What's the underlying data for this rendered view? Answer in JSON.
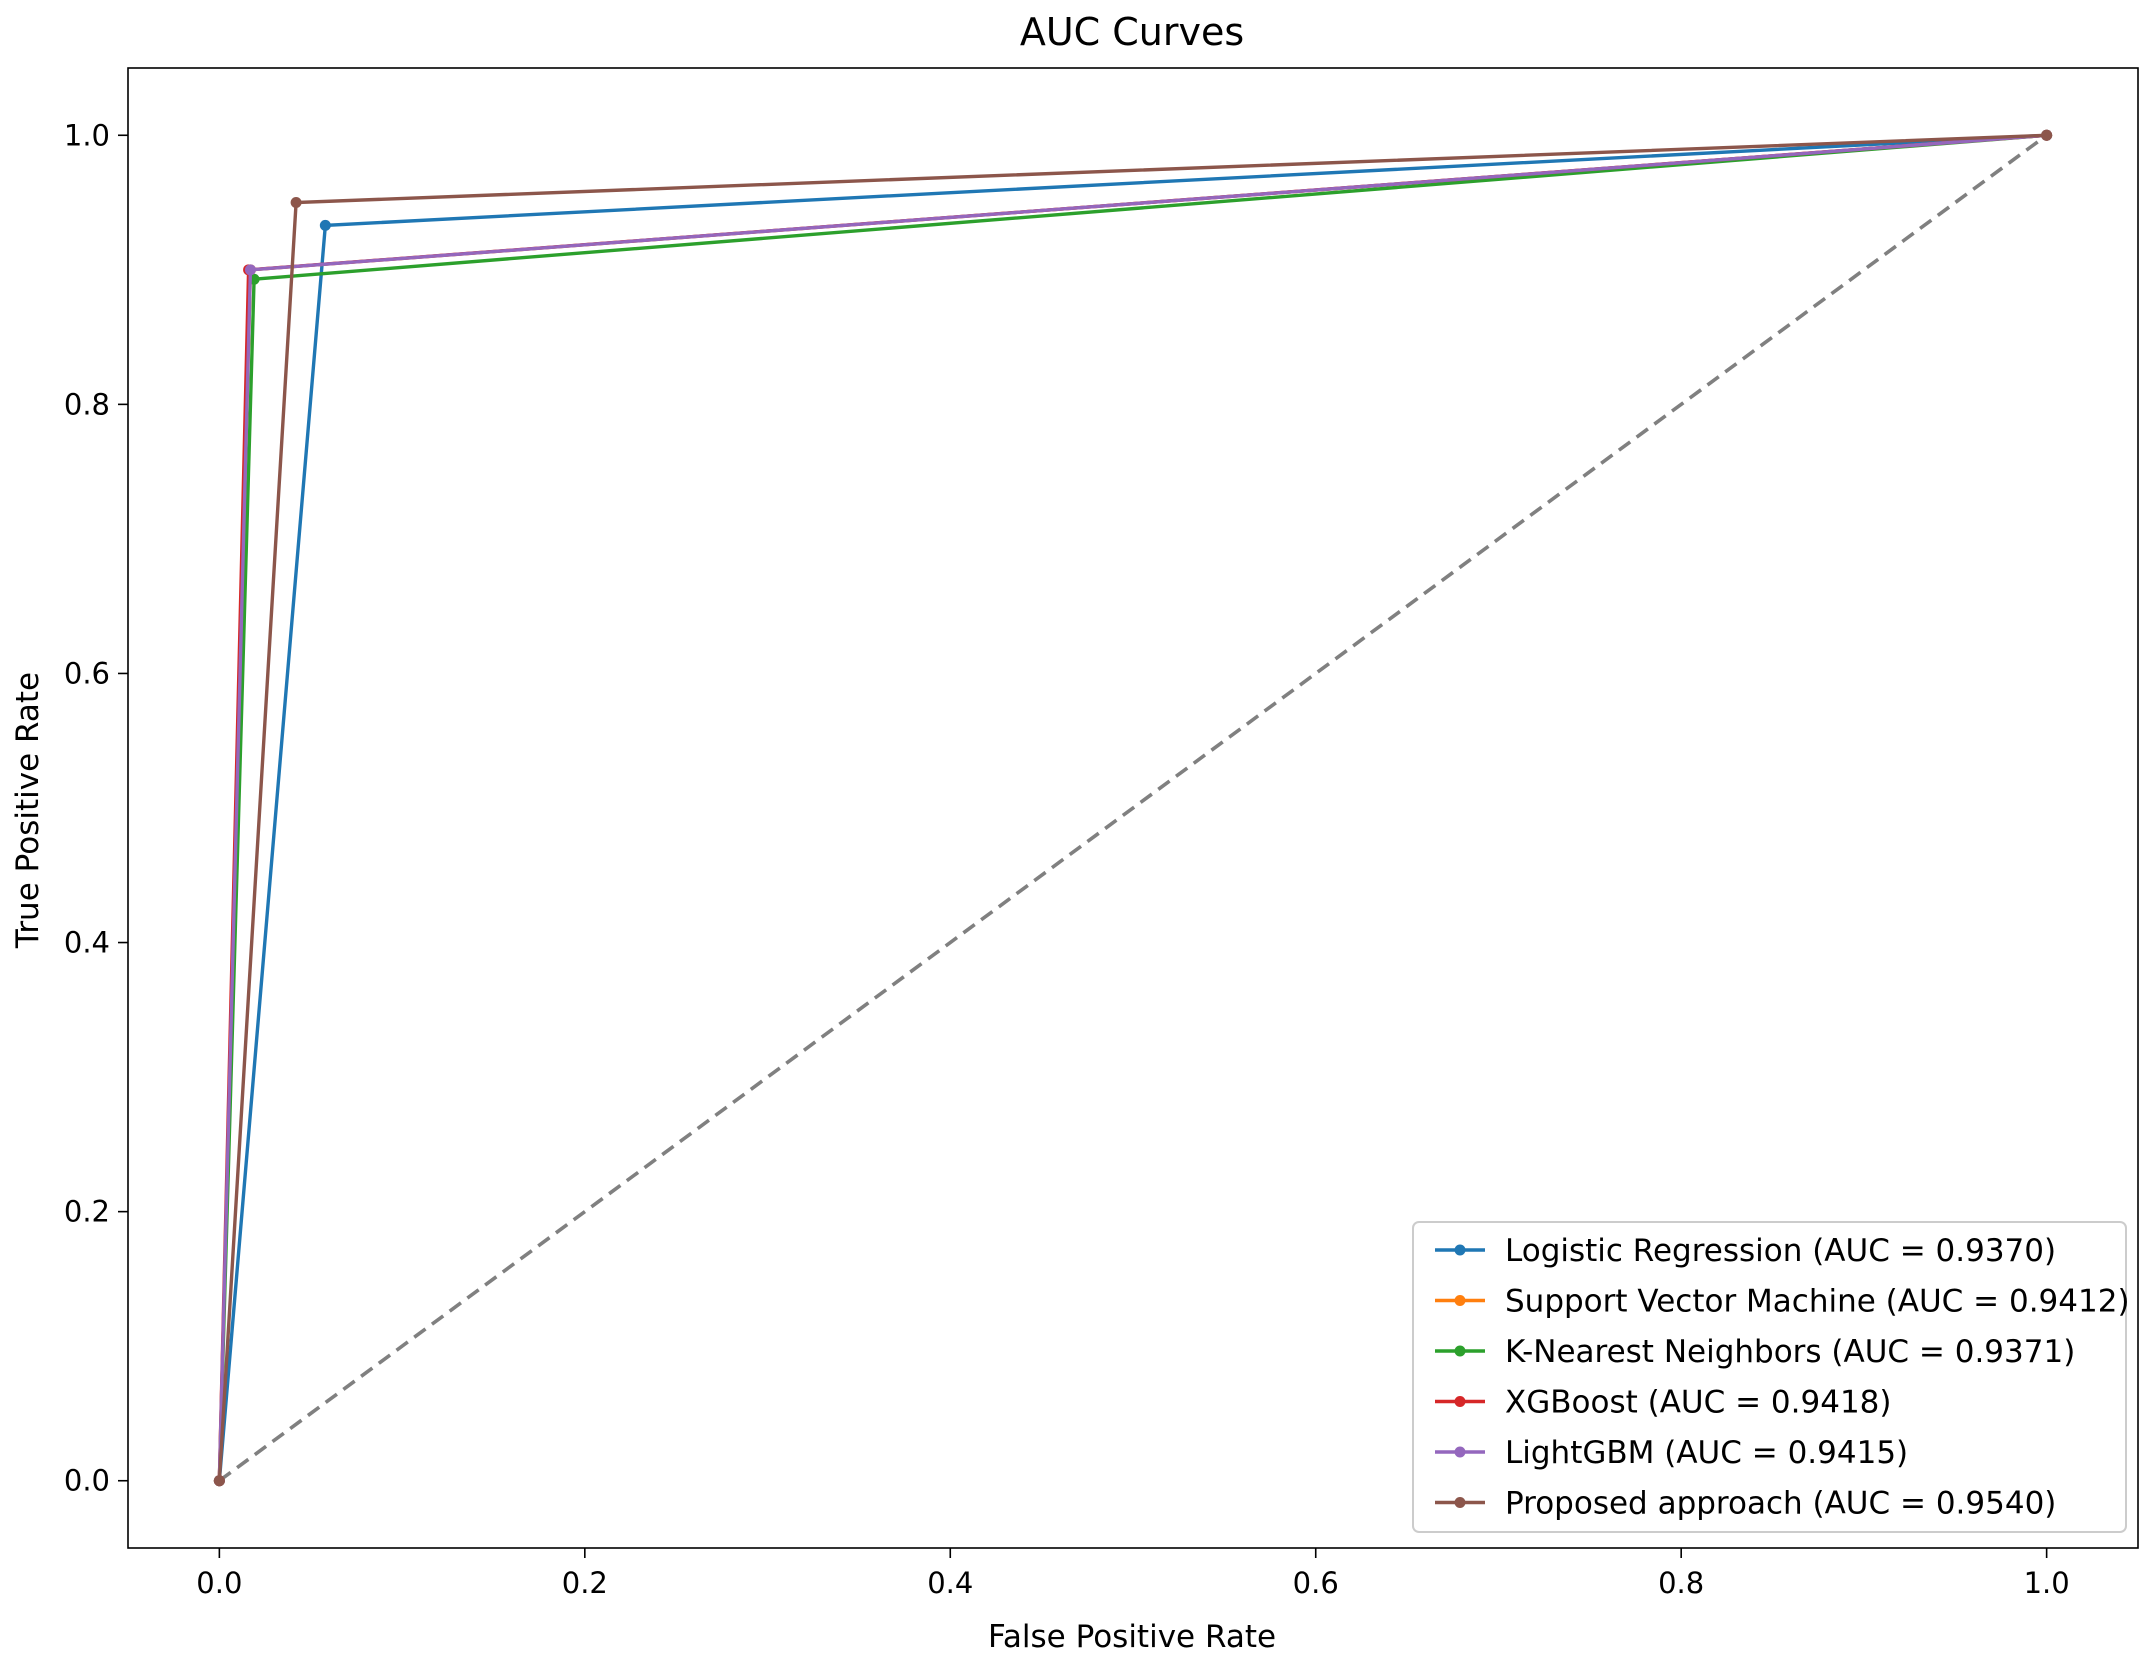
{
  "chart_data": {
    "type": "line",
    "title": "AUC Curves",
    "xlabel": "False Positive Rate",
    "ylabel": "True Positive Rate",
    "xlim": [
      -0.05,
      1.05
    ],
    "ylim": [
      -0.05,
      1.05
    ],
    "xticks": [
      0.0,
      0.2,
      0.4,
      0.6,
      0.8,
      1.0
    ],
    "xtick_labels": [
      "0.0",
      "0.2",
      "0.4",
      "0.6",
      "0.8",
      "1.0"
    ],
    "yticks": [
      0.0,
      0.2,
      0.4,
      0.6,
      0.8,
      1.0
    ],
    "ytick_labels": [
      "0.0",
      "0.2",
      "0.4",
      "0.6",
      "0.8",
      "1.0"
    ],
    "grid": false,
    "legend_position": "lower-right",
    "diagonal": {
      "x": [
        0,
        1
      ],
      "y": [
        0,
        1
      ],
      "color": "#808080",
      "style": "dashed"
    },
    "series": [
      {
        "name": "Logistic Regression (AUC = 0.9370)",
        "color": "#1f77b4",
        "x": [
          0,
          0.058,
          1
        ],
        "y": [
          0,
          0.933,
          1
        ]
      },
      {
        "name": "Support Vector Machine (AUC = 0.9412)",
        "color": "#ff7f0e",
        "x": [
          0,
          0.017,
          1
        ],
        "y": [
          0,
          0.9,
          1
        ]
      },
      {
        "name": "K-Nearest Neighbors (AUC = 0.9371)",
        "color": "#2ca02c",
        "x": [
          0,
          0.019,
          1
        ],
        "y": [
          0,
          0.893,
          1
        ]
      },
      {
        "name": "XGBoost (AUC = 0.9418)",
        "color": "#d62728",
        "x": [
          0,
          0.016,
          1
        ],
        "y": [
          0,
          0.9,
          1
        ]
      },
      {
        "name": "LightGBM (AUC = 0.9415)",
        "color": "#9467bd",
        "x": [
          0,
          0.017,
          1
        ],
        "y": [
          0,
          0.9,
          1
        ]
      },
      {
        "name": "Proposed approach (AUC = 0.9540)",
        "color": "#8c564b",
        "x": [
          0,
          0.042,
          1
        ],
        "y": [
          0,
          0.95,
          1
        ]
      }
    ]
  }
}
